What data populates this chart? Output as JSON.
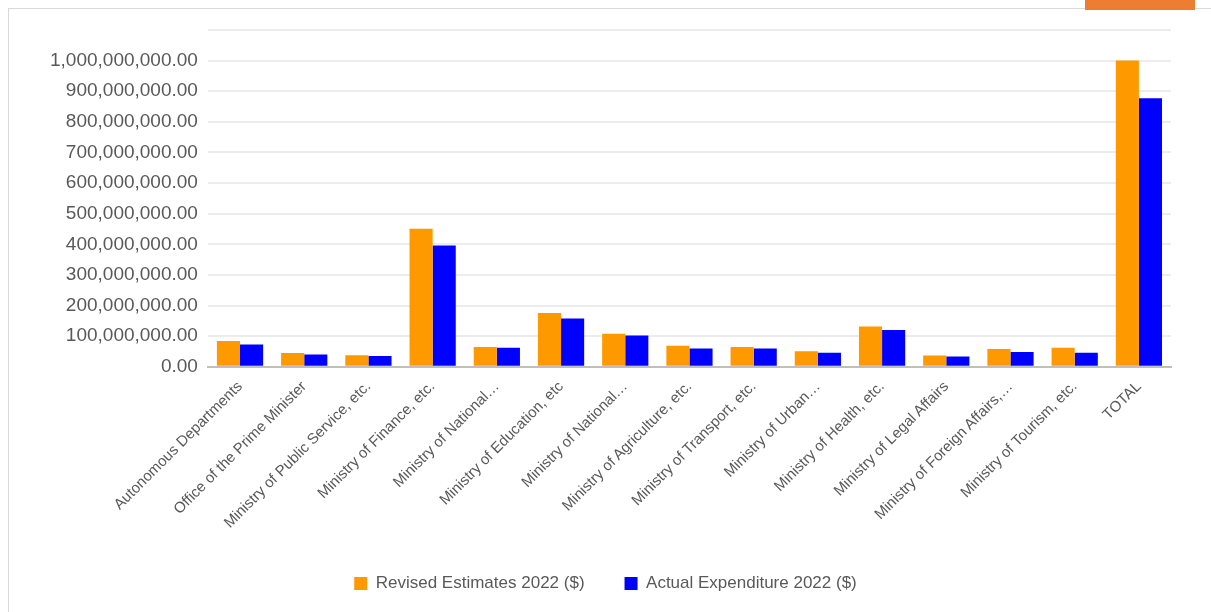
{
  "chart_data": {
    "type": "bar",
    "categories": [
      "Autonomous Departments",
      "Office of the Prime Minister",
      "Ministry of Public Service, etc.",
      "Ministry of Finance, etc.",
      "Ministry of National…",
      "Ministry of Education, etc",
      "Ministry of National…",
      "Ministry of Agriculture, etc.",
      "Ministry of Transport, etc.",
      "Ministry of Urban…",
      "Ministry of Health, etc.",
      "Ministry of Legal Affairs",
      "Ministry of Foreign Affairs,…",
      "Ministry of Tourism, etc.",
      "TOTAL"
    ],
    "series": [
      {
        "name": "Revised Estimates 2022 ($)",
        "color": "#ff9900",
        "values": [
          84000000,
          45000000,
          38000000,
          451000000,
          65000000,
          176000000,
          108000000,
          69000000,
          65000000,
          51000000,
          132000000,
          37000000,
          58000000,
          62000000,
          1000000000
        ]
      },
      {
        "name": "Actual Expenditure 2022 ($)",
        "color": "#0000ff",
        "values": [
          73000000,
          40000000,
          35000000,
          396000000,
          62000000,
          158000000,
          102000000,
          60000000,
          60000000,
          46000000,
          120000000,
          34000000,
          48000000,
          46000000,
          877000000
        ]
      }
    ],
    "ylim": [
      0,
      1100000000
    ],
    "yticks": [
      {
        "value": 0,
        "label": "0.00"
      },
      {
        "value": 100000000,
        "label": "100,000,000.00"
      },
      {
        "value": 200000000,
        "label": "200,000,000.00"
      },
      {
        "value": 300000000,
        "label": "300,000,000.00"
      },
      {
        "value": 400000000,
        "label": "400,000,000.00"
      },
      {
        "value": 500000000,
        "label": "500,000,000.00"
      },
      {
        "value": 600000000,
        "label": "600,000,000.00"
      },
      {
        "value": 700000000,
        "label": "700,000,000.00"
      },
      {
        "value": 800000000,
        "label": "800,000,000.00"
      },
      {
        "value": 900000000,
        "label": "900,000,000.00"
      },
      {
        "value": 1000000000,
        "label": "1,000,000,000.00"
      },
      {
        "value": 1100000000,
        "label": null
      }
    ],
    "grid": "y",
    "legend": "bottom"
  }
}
